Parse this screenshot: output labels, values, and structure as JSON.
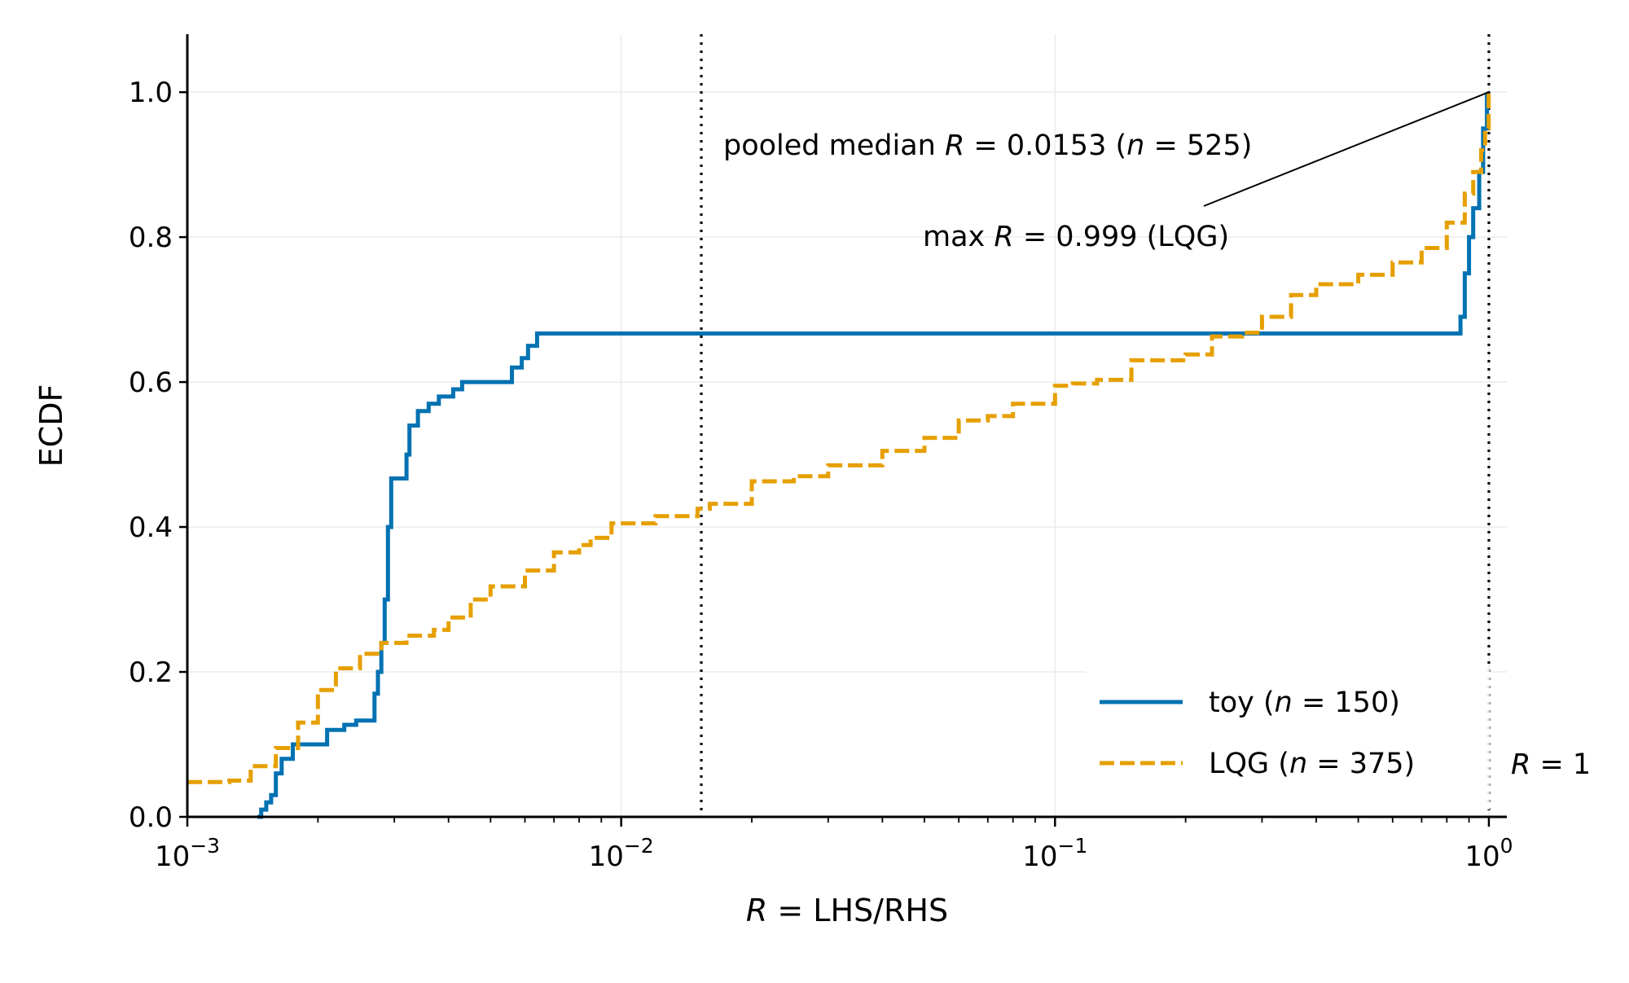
{
  "chart_data": {
    "type": "line",
    "xlabel": {
      "prefix": "R",
      "suffix": " = LHS/RHS"
    },
    "ylabel": "ECDF",
    "xscale": "log",
    "xlim": [
      0.001,
      1.1
    ],
    "ylim": [
      0,
      1.08
    ],
    "grid": true,
    "legend_position": "lower right",
    "x_ticks": [
      {
        "value": 0.001,
        "base": "10",
        "exp": "−3"
      },
      {
        "value": 0.01,
        "base": "10",
        "exp": "−2"
      },
      {
        "value": 0.1,
        "base": "10",
        "exp": "−1"
      },
      {
        "value": 1,
        "base": "10",
        "exp": "0"
      }
    ],
    "y_ticks": [
      {
        "value": 0.0,
        "label": "0.0"
      },
      {
        "value": 0.2,
        "label": "0.2"
      },
      {
        "value": 0.4,
        "label": "0.4"
      },
      {
        "value": 0.6,
        "label": "0.6"
      },
      {
        "value": 0.8,
        "label": "0.8"
      },
      {
        "value": 1.0,
        "label": "1.0"
      }
    ],
    "vlines": [
      {
        "x": 0.0153,
        "style": "dotted"
      },
      {
        "x": 1.0,
        "style": "dotted"
      }
    ],
    "annotations": {
      "median": {
        "pre": "pooled median ",
        "var": "R",
        "mid": " = 0.0153 (",
        "var2": "n",
        "post": " = 525)"
      },
      "max": {
        "pre": "max ",
        "var": "R",
        "post": " = 0.999 (LQG)",
        "x": 0.999,
        "y": 1.0
      },
      "r1": {
        "var": "R",
        "post": " = 1"
      }
    },
    "series": [
      {
        "name": "toy",
        "legend": {
          "pre": "toy (",
          "var": "n",
          "post": " = 150)"
        },
        "color": "#0072b2",
        "dash": "solid",
        "points": [
          [
            0.00145,
            0.0
          ],
          [
            0.00148,
            0.01
          ],
          [
            0.00152,
            0.02
          ],
          [
            0.00156,
            0.03
          ],
          [
            0.0016,
            0.06
          ],
          [
            0.00165,
            0.08
          ],
          [
            0.00175,
            0.1
          ],
          [
            0.00205,
            0.1
          ],
          [
            0.0021,
            0.12
          ],
          [
            0.00225,
            0.12
          ],
          [
            0.0023,
            0.127
          ],
          [
            0.0024,
            0.127
          ],
          [
            0.00245,
            0.133
          ],
          [
            0.00265,
            0.133
          ],
          [
            0.0027,
            0.17
          ],
          [
            0.00275,
            0.2
          ],
          [
            0.0028,
            0.24
          ],
          [
            0.00285,
            0.3
          ],
          [
            0.0029,
            0.4
          ],
          [
            0.00295,
            0.467
          ],
          [
            0.00315,
            0.467
          ],
          [
            0.0032,
            0.5
          ],
          [
            0.00325,
            0.54
          ],
          [
            0.0034,
            0.56
          ],
          [
            0.0036,
            0.57
          ],
          [
            0.0038,
            0.58
          ],
          [
            0.0041,
            0.59
          ],
          [
            0.0043,
            0.6
          ],
          [
            0.00545,
            0.6
          ],
          [
            0.0056,
            0.62
          ],
          [
            0.0059,
            0.633
          ],
          [
            0.0061,
            0.65
          ],
          [
            0.0064,
            0.667
          ],
          [
            0.85,
            0.667
          ],
          [
            0.86,
            0.69
          ],
          [
            0.88,
            0.75
          ],
          [
            0.9,
            0.8
          ],
          [
            0.92,
            0.84
          ],
          [
            0.95,
            0.89
          ],
          [
            0.97,
            0.95
          ],
          [
            0.99,
            1.0
          ]
        ]
      },
      {
        "name": "LQG",
        "legend": {
          "pre": "LQG (",
          "var": "n",
          "post": " = 375)"
        },
        "color": "#e69f00",
        "dash": "dashed",
        "points": [
          [
            0.001,
            0.048
          ],
          [
            0.00125,
            0.05
          ],
          [
            0.0014,
            0.07
          ],
          [
            0.0016,
            0.095
          ],
          [
            0.0018,
            0.13
          ],
          [
            0.002,
            0.175
          ],
          [
            0.0022,
            0.205
          ],
          [
            0.0025,
            0.225
          ],
          [
            0.0028,
            0.24
          ],
          [
            0.0032,
            0.25
          ],
          [
            0.0037,
            0.258
          ],
          [
            0.004,
            0.275
          ],
          [
            0.0045,
            0.3
          ],
          [
            0.005,
            0.318
          ],
          [
            0.006,
            0.34
          ],
          [
            0.007,
            0.365
          ],
          [
            0.008,
            0.375
          ],
          [
            0.0085,
            0.385
          ],
          [
            0.0095,
            0.405
          ],
          [
            0.012,
            0.415
          ],
          [
            0.015,
            0.425
          ],
          [
            0.016,
            0.432
          ],
          [
            0.02,
            0.463
          ],
          [
            0.025,
            0.47
          ],
          [
            0.03,
            0.485
          ],
          [
            0.04,
            0.505
          ],
          [
            0.05,
            0.523
          ],
          [
            0.06,
            0.547
          ],
          [
            0.07,
            0.553
          ],
          [
            0.08,
            0.57
          ],
          [
            0.1,
            0.595
          ],
          [
            0.11,
            0.598
          ],
          [
            0.125,
            0.603
          ],
          [
            0.15,
            0.63
          ],
          [
            0.2,
            0.638
          ],
          [
            0.23,
            0.663
          ],
          [
            0.27,
            0.668
          ],
          [
            0.3,
            0.69
          ],
          [
            0.35,
            0.72
          ],
          [
            0.4,
            0.735
          ],
          [
            0.5,
            0.748
          ],
          [
            0.6,
            0.765
          ],
          [
            0.7,
            0.785
          ],
          [
            0.8,
            0.82
          ],
          [
            0.88,
            0.86
          ],
          [
            0.92,
            0.89
          ],
          [
            0.96,
            0.92
          ],
          [
            0.98,
            0.95
          ],
          [
            0.999,
            1.0
          ]
        ]
      }
    ]
  }
}
